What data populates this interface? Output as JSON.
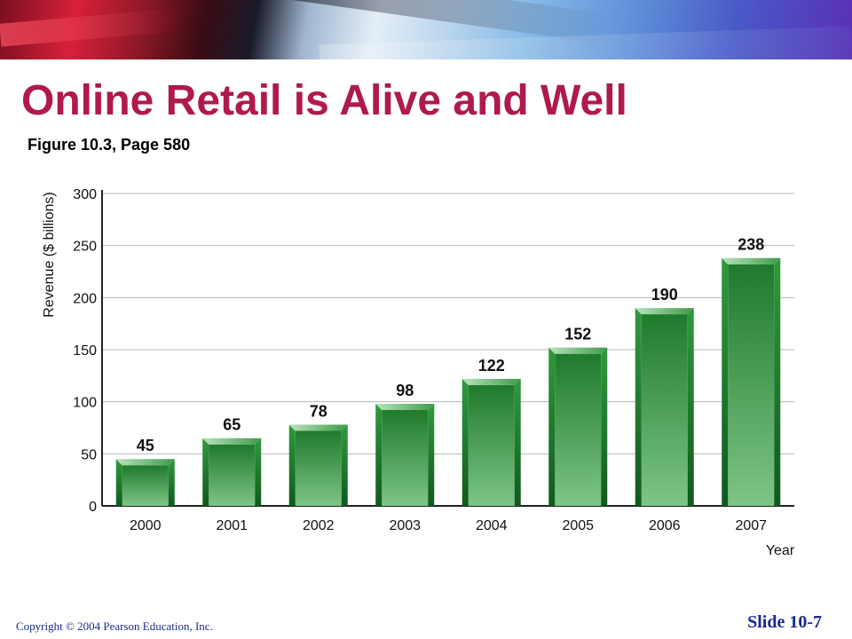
{
  "slide": {
    "title": "Online Retail is Alive and Well",
    "subtitle": "Figure 10.3, Page 580",
    "copyright": "Copyright © 2004 Pearson Education, Inc.",
    "slide_number": "Slide 10-7",
    "title_color": "#b0194e",
    "footer_color": "#1a2a8c"
  },
  "chart_data": {
    "type": "bar",
    "categories": [
      "2000",
      "2001",
      "2002",
      "2003",
      "2004",
      "2005",
      "2006",
      "2007"
    ],
    "values": [
      45,
      65,
      78,
      98,
      122,
      152,
      190,
      238
    ],
    "ylabel": "Revenue ($ billions)",
    "xlabel": "Year",
    "ylim": [
      0,
      300
    ],
    "yticks": [
      0,
      50,
      100,
      150,
      200,
      250,
      300
    ],
    "grid": true,
    "bar_color": "#2e8b3a",
    "data_labels": true
  }
}
